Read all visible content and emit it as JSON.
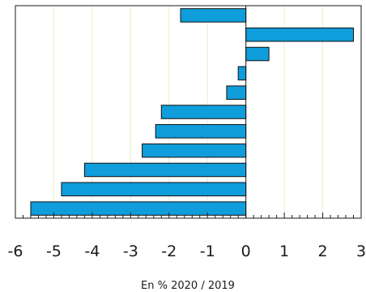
{
  "chart_data": {
    "type": "bar",
    "orientation": "horizontal",
    "title": "",
    "xlabel": "En % 2020 / 2019",
    "ylabel": "",
    "values": [
      -1.7,
      2.8,
      0.6,
      -0.2,
      -0.5,
      -2.2,
      -2.35,
      -2.7,
      -4.2,
      -4.8,
      -5.6
    ],
    "xlim": [
      -6,
      3
    ],
    "xticks": [
      -6,
      -5,
      -4,
      -3,
      -2,
      -1,
      0,
      1,
      2,
      3
    ],
    "xtick_labels": [
      "-6",
      "-5",
      "-4",
      "-3",
      "-2",
      "-1",
      "0",
      "1",
      "2",
      "3"
    ],
    "grid": "vertical",
    "bar_color": "#0f9ddb",
    "bar_edge_color": "#111111",
    "grid_color": "#e8edc9"
  }
}
